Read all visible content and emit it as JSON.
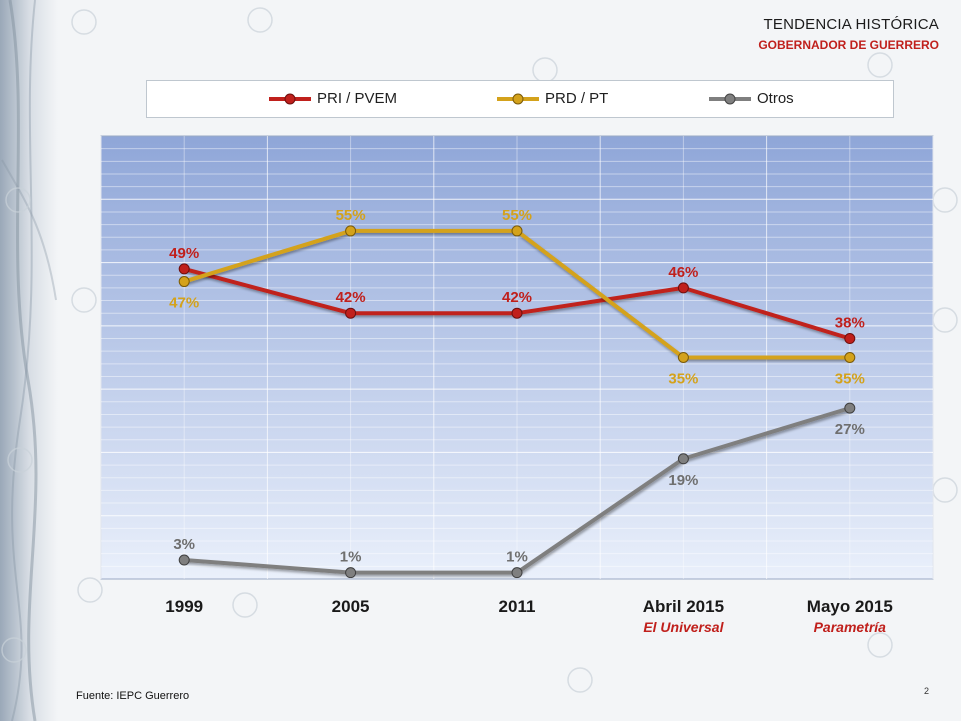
{
  "header": {
    "title": "TENDENCIA HISTÓRICA",
    "subtitle": "GOBERNADOR DE GUERRERO"
  },
  "footer": {
    "source": "Fuente: IEPC Guerrero",
    "page_number": "2"
  },
  "watermark": {
    "text": "Parametría"
  },
  "colors": {
    "pri": "#c0201c",
    "prd": "#d4a21b",
    "otros": "#7f7f7f",
    "plot_top": "#8fa6d8",
    "plot_bottom": "#eaf0fb",
    "accent_red": "#c0201c"
  },
  "chart_data": {
    "type": "line",
    "title": "TENDENCIA HISTÓRICA — GOBERNADOR DE GUERRERO",
    "categories": [
      "1999",
      "2005",
      "2011",
      "Abril 2015",
      "Mayo 2015"
    ],
    "category_sublabels": [
      "",
      "",
      "",
      "El Universal",
      "Parametría"
    ],
    "ylim": [
      0,
      70
    ],
    "grid": true,
    "legend_position": "top",
    "series": [
      {
        "key": "pri",
        "name": "PRI / PVEM",
        "values": [
          49,
          42,
          42,
          46,
          38
        ],
        "label_pos": [
          "above",
          "above",
          "above",
          "above",
          "above"
        ]
      },
      {
        "key": "prd",
        "name": "PRD / PT",
        "values": [
          47,
          55,
          55,
          35,
          35
        ],
        "label_pos": [
          "below",
          "above",
          "above",
          "below",
          "below"
        ]
      },
      {
        "key": "otros",
        "name": "Otros",
        "values": [
          3,
          1,
          1,
          19,
          27
        ],
        "label_pos": [
          "above",
          "above",
          "above",
          "below",
          "below"
        ]
      }
    ]
  }
}
